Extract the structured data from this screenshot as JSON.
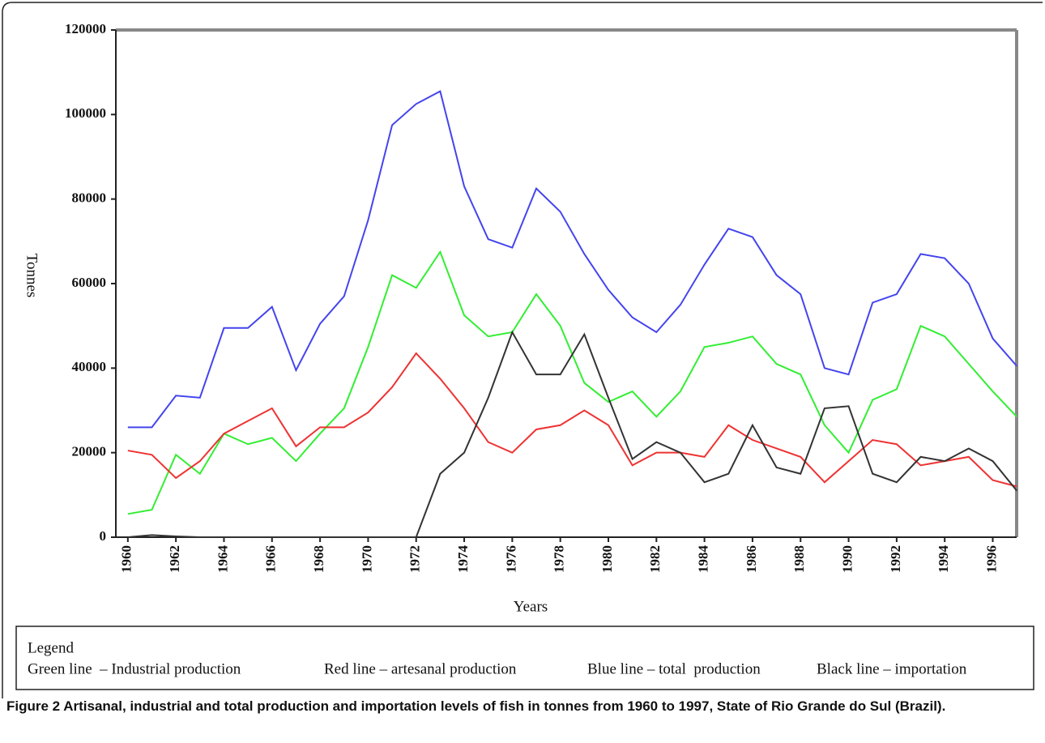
{
  "chart_data": {
    "type": "line",
    "y_label": "Tonnes",
    "x_label": "Years",
    "x": [
      1960,
      1961,
      1962,
      1963,
      1964,
      1965,
      1966,
      1967,
      1968,
      1969,
      1970,
      1971,
      1972,
      1973,
      1974,
      1975,
      1976,
      1977,
      1978,
      1979,
      1980,
      1981,
      1982,
      1983,
      1984,
      1985,
      1986,
      1987,
      1988,
      1989,
      1990,
      1991,
      1992,
      1993,
      1994,
      1995,
      1996,
      1997
    ],
    "xlim": [
      1959.5,
      1997.5
    ],
    "xticks": [
      1960,
      1962,
      1964,
      1966,
      1968,
      1970,
      1972,
      1974,
      1976,
      1978,
      1980,
      1982,
      1984,
      1986,
      1988,
      1990,
      1992,
      1994,
      1996
    ],
    "ylim": [
      0,
      120000
    ],
    "yticks": [
      0,
      20000,
      40000,
      60000,
      80000,
      100000,
      120000
    ],
    "legend_title": "Legend",
    "series": [
      {
        "name": "Green line  – Industrial production",
        "color": "#33ee33",
        "values": [
          5500,
          6500,
          19500,
          15000,
          24500,
          22000,
          23500,
          18000,
          24500,
          30500,
          45000,
          62000,
          59000,
          67500,
          52500,
          47500,
          48500,
          57500,
          50000,
          36500,
          32000,
          34500,
          28500,
          34500,
          45000,
          46000,
          47500,
          41000,
          38500,
          26500,
          20000,
          32500,
          35000,
          50000,
          47500,
          41000,
          34500,
          28500
        ]
      },
      {
        "name": "Red line – artesanal production",
        "color": "#ee3333",
        "values": [
          20500,
          19500,
          14000,
          18000,
          24500,
          27500,
          30500,
          21500,
          26000,
          26000,
          29500,
          35500,
          43500,
          37500,
          30500,
          22500,
          20000,
          25500,
          26500,
          30000,
          26500,
          17000,
          20000,
          20000,
          19000,
          26500,
          23000,
          21000,
          19000,
          13000,
          18000,
          23000,
          22000,
          17000,
          18000,
          19000,
          13500,
          12000
        ]
      },
      {
        "name": "Blue line – total  production",
        "color": "#4444ee",
        "values": [
          26000,
          26000,
          33500,
          33000,
          49500,
          49500,
          54500,
          39500,
          50500,
          57000,
          75000,
          97500,
          102500,
          105500,
          83000,
          70500,
          68500,
          82500,
          77000,
          67000,
          58500,
          52000,
          48500,
          55000,
          64500,
          73000,
          71000,
          62000,
          57500,
          40000,
          38500,
          55500,
          57500,
          67000,
          66000,
          60000,
          47000,
          40500
        ]
      },
      {
        "name": "Black line – importation",
        "color": "#333333",
        "values": [
          0,
          500,
          200,
          0,
          0,
          0,
          0,
          0,
          0,
          0,
          0,
          0,
          0,
          15000,
          20000,
          33000,
          48500,
          38500,
          38500,
          48000,
          33000,
          18500,
          22500,
          20000,
          13000,
          15000,
          26500,
          16500,
          15000,
          30500,
          31000,
          15000,
          13000,
          19000,
          18000,
          21000,
          18000,
          11000
        ]
      }
    ],
    "caption_label": "Figure 2",
    "caption": "Artisanal, industrial and total production and importation levels of fish in tonnes from 1960 to 1997, State of Rio Grande do Sul (Brazil)."
  }
}
